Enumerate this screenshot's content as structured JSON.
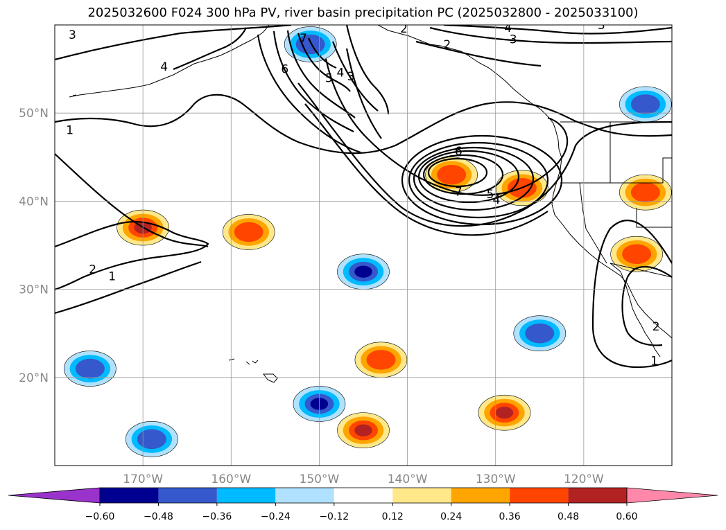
{
  "title": "2025032600 F024 300 hPa PV, river basin precipitation PC (2025032800 - 2025033100)",
  "chart_data": {
    "type": "contour map",
    "map_extent": {
      "lon": [
        -180,
        -110
      ],
      "lat": [
        10,
        60
      ]
    },
    "grid": true,
    "lon_ticks": [
      {
        "value": -170,
        "label": "170°W"
      },
      {
        "value": -160,
        "label": "160°W"
      },
      {
        "value": -150,
        "label": "150°W"
      },
      {
        "value": -140,
        "label": "140°W"
      },
      {
        "value": -130,
        "label": "130°W"
      },
      {
        "value": -120,
        "label": "120°W"
      }
    ],
    "lat_ticks": [
      {
        "value": 20,
        "label": "20°N"
      },
      {
        "value": 30,
        "label": "30°N"
      },
      {
        "value": 40,
        "label": "40°N"
      },
      {
        "value": 50,
        "label": "50°N"
      }
    ],
    "colorbar": {
      "levels": [
        -0.6,
        -0.48,
        -0.36,
        -0.24,
        -0.12,
        0.12,
        0.24,
        0.36,
        0.48,
        0.6
      ],
      "tick_labels": [
        "−0.60",
        "−0.48",
        "−0.36",
        "−0.24",
        "−0.12",
        "0.12",
        "0.24",
        "0.36",
        "0.48",
        "0.60"
      ],
      "colors": [
        "#9933cc",
        "#000090",
        "#3558cc",
        "#00bbff",
        "#b0e2ff",
        "#ffffff",
        "#ffe88a",
        "#ffa500",
        "#ff4500",
        "#b22222",
        "#ff88aa"
      ],
      "extend": "both"
    },
    "pv_contour_labels": [
      {
        "text": "3",
        "lon": -178.0,
        "lat": 58.9
      },
      {
        "text": "4",
        "lon": -167.6,
        "lat": 55.3
      },
      {
        "text": "6",
        "lon": -153.9,
        "lat": 55.0
      },
      {
        "text": "7",
        "lon": -151.8,
        "lat": 58.5
      },
      {
        "text": "5",
        "lon": -148.9,
        "lat": 54.0
      },
      {
        "text": "4",
        "lon": -147.6,
        "lat": 54.6
      },
      {
        "text": "3",
        "lon": -146.4,
        "lat": 54.2
      },
      {
        "text": "2",
        "lon": -140.4,
        "lat": 59.6
      },
      {
        "text": "2",
        "lon": -135.5,
        "lat": 57.8
      },
      {
        "text": "4",
        "lon": -128.6,
        "lat": 59.7
      },
      {
        "text": "3",
        "lon": -128.0,
        "lat": 58.4
      },
      {
        "text": "3",
        "lon": -118.0,
        "lat": 60.0
      },
      {
        "text": "6",
        "lon": -134.2,
        "lat": 45.7
      },
      {
        "text": "7",
        "lon": -134.2,
        "lat": 41.1
      },
      {
        "text": "5",
        "lon": -130.6,
        "lat": 40.8
      },
      {
        "text": "4",
        "lon": -129.9,
        "lat": 40.2
      },
      {
        "text": "1",
        "lon": -178.3,
        "lat": 48.1
      },
      {
        "text": "2",
        "lon": -175.7,
        "lat": 32.3
      },
      {
        "text": "1",
        "lon": -173.5,
        "lat": 31.5
      },
      {
        "text": "2",
        "lon": -111.8,
        "lat": 25.8
      },
      {
        "text": "1",
        "lon": -112.0,
        "lat": 21.9
      }
    ],
    "precip_pc_anomalies": [
      {
        "lon": -170,
        "lat": 37.0,
        "value": 0.5
      },
      {
        "lon": -158,
        "lat": 36.5,
        "value": 0.4
      },
      {
        "lon": -127,
        "lat": 41.5,
        "value": 0.45
      },
      {
        "lon": -135,
        "lat": 43.0,
        "value": 0.36
      },
      {
        "lon": -143,
        "lat": 22.0,
        "value": 0.4
      },
      {
        "lon": -145,
        "lat": 14.0,
        "value": 0.5
      },
      {
        "lon": -129,
        "lat": 16.0,
        "value": 0.5
      },
      {
        "lon": -113,
        "lat": 41.0,
        "value": 0.36
      },
      {
        "lon": -114,
        "lat": 34.0,
        "value": 0.36
      },
      {
        "lon": -150,
        "lat": 17.0,
        "value": -0.55
      },
      {
        "lon": -145,
        "lat": 32.0,
        "value": -0.55
      },
      {
        "lon": -125,
        "lat": 25.0,
        "value": -0.36
      },
      {
        "lon": -151,
        "lat": 57.8,
        "value": -0.36
      },
      {
        "lon": -113,
        "lat": 51.0,
        "value": -0.36
      },
      {
        "lon": -169,
        "lat": 13.0,
        "value": -0.36
      },
      {
        "lon": -176,
        "lat": 21.0,
        "value": -0.36
      }
    ]
  }
}
